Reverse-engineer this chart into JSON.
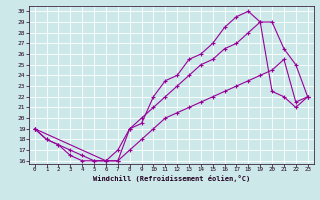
{
  "xlabel": "Windchill (Refroidissement éolien,°C)",
  "bg_color": "#cce8e8",
  "grid_color": "#ffffff",
  "line_color": "#990099",
  "xlim": [
    -0.5,
    23.5
  ],
  "ylim": [
    15.7,
    30.5
  ],
  "xticks": [
    0,
    1,
    2,
    3,
    4,
    5,
    6,
    7,
    8,
    9,
    10,
    11,
    12,
    13,
    14,
    15,
    16,
    17,
    18,
    19,
    20,
    21,
    22,
    23
  ],
  "yticks": [
    16,
    17,
    18,
    19,
    20,
    21,
    22,
    23,
    24,
    25,
    26,
    27,
    28,
    29,
    30
  ],
  "line1_x": [
    0,
    1,
    2,
    3,
    4,
    5,
    6,
    7,
    8,
    9,
    10,
    11,
    12,
    13,
    14,
    15,
    16,
    17,
    18,
    19,
    20,
    21,
    22,
    23
  ],
  "line1_y": [
    19,
    18,
    17.5,
    16.5,
    16,
    16,
    16,
    17,
    19,
    19.5,
    22,
    23.5,
    24,
    25.5,
    26,
    27,
    28.5,
    29.5,
    30,
    29,
    22.5,
    22,
    21,
    22
  ],
  "line2_x": [
    0,
    1,
    2,
    3,
    4,
    5,
    6,
    7,
    8,
    9,
    10,
    11,
    12,
    13,
    14,
    15,
    16,
    17,
    18,
    19,
    20,
    21,
    22,
    23
  ],
  "line2_y": [
    19,
    18,
    17.5,
    17,
    16.5,
    16,
    16,
    16,
    19,
    20,
    21,
    22,
    23,
    24,
    25,
    25.5,
    26.5,
    27,
    28,
    29,
    29,
    26.5,
    25,
    22
  ],
  "line3_x": [
    0,
    6,
    7,
    8,
    9,
    10,
    11,
    12,
    13,
    14,
    15,
    16,
    17,
    18,
    19,
    20,
    21,
    22,
    23
  ],
  "line3_y": [
    19,
    16,
    16,
    17,
    18,
    19,
    20,
    20.5,
    21,
    21.5,
    22,
    22.5,
    23,
    23.5,
    24,
    24.5,
    25.5,
    21.5,
    22
  ]
}
